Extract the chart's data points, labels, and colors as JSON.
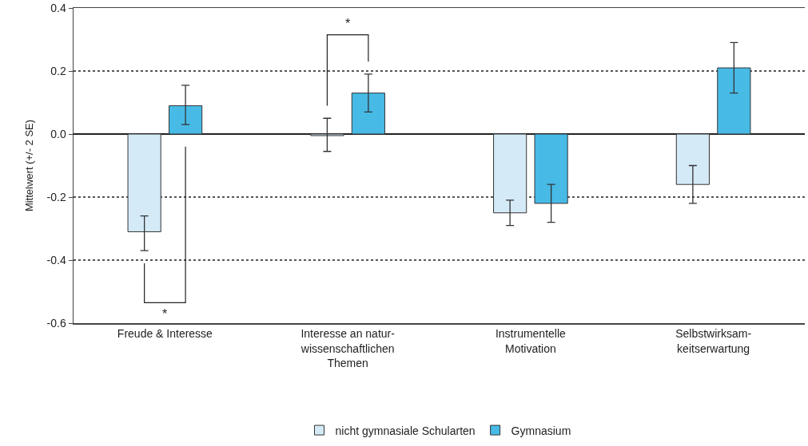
{
  "chart_data": {
    "type": "bar",
    "ylabel": "Mittelwert (+/- 2 SE)",
    "categories": [
      "Freude & Interesse",
      "Interesse an natur-\nwissenschaftlichen\nThemen",
      "Instrumentelle\nMotivation",
      "Selbstwirksam-\nkeitserwartung"
    ],
    "series": [
      {
        "name": "nicht gymnasiale Schularten",
        "color": "#d4eaf7",
        "values": [
          -0.31,
          -0.005,
          -0.25,
          -0.16
        ],
        "errors": [
          [
            -0.37,
            -0.26
          ],
          [
            -0.055,
            0.05
          ],
          [
            -0.29,
            -0.21
          ],
          [
            -0.22,
            -0.1
          ]
        ]
      },
      {
        "name": "Gymnasium",
        "color": "#47bae6",
        "values": [
          0.09,
          0.13,
          -0.22,
          0.21
        ],
        "errors": [
          [
            0.03,
            0.155
          ],
          [
            0.07,
            0.19
          ],
          [
            -0.28,
            -0.16
          ],
          [
            0.13,
            0.29
          ]
        ]
      }
    ],
    "ylim": [
      -0.6,
      0.4
    ],
    "yticks": [
      {
        "value": -0.6,
        "label": "-0.6"
      },
      {
        "value": -0.4,
        "label": "-0.4"
      },
      {
        "value": -0.2,
        "label": "-0.2"
      },
      {
        "value": 0,
        "label": "0.0"
      },
      {
        "value": 0.2,
        "label": "0.2"
      },
      {
        "value": 0.4,
        "label": "0.4"
      }
    ],
    "grid": "y",
    "line_style": "dotted",
    "legend": "bottom",
    "annotations": [
      "*",
      "*"
    ]
  }
}
